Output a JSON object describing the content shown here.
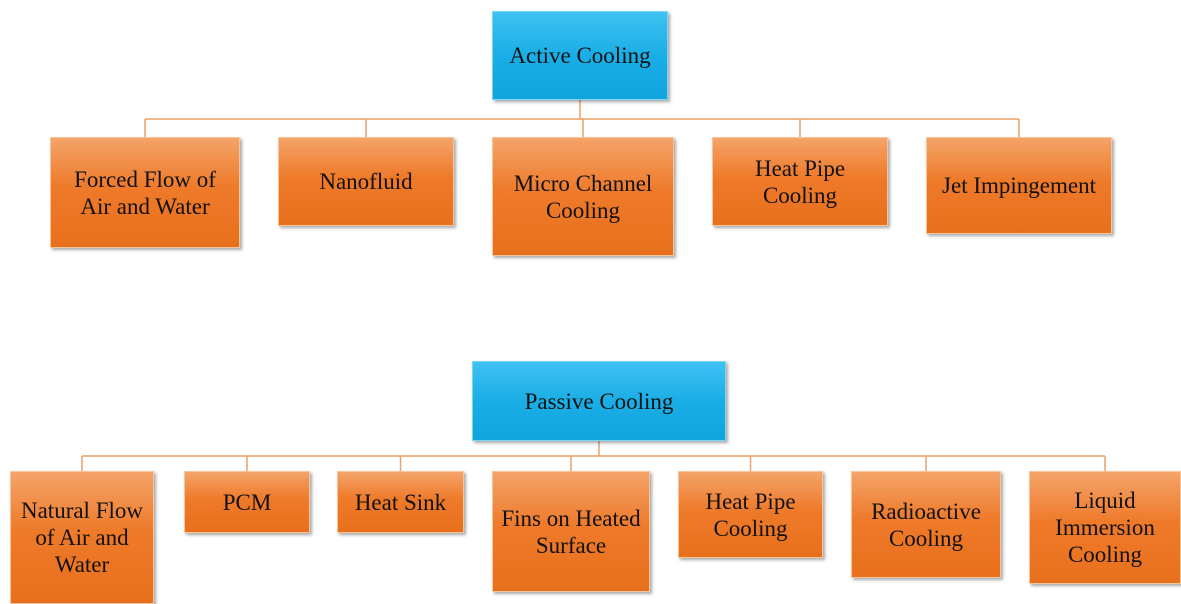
{
  "trees": [
    {
      "root": "Active Cooling",
      "children": [
        "Forced Flow of Air and Water",
        "Nanofluid",
        "Micro Channel Cooling",
        "Heat Pipe Cooling",
        "Jet Impingement"
      ]
    },
    {
      "root": "Passive Cooling",
      "children": [
        "Natural Flow of Air and Water",
        "PCM",
        "Heat Sink",
        "Fins on Heated Surface",
        "Heat Pipe Cooling",
        "Radioactive Cooling",
        "Liquid Immersion Cooling"
      ]
    }
  ]
}
